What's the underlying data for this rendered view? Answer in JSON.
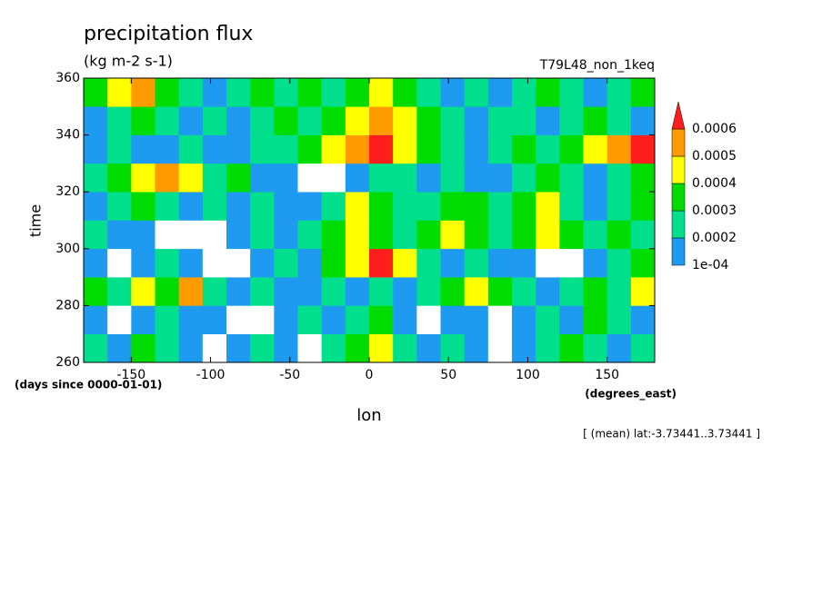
{
  "chart_data": {
    "type": "contourf",
    "title": "precipitation flux",
    "subtitle": "(kg m-2 s-1)",
    "annotation": "T79L48_non_1keq",
    "x_label": "lon",
    "y_label": "time",
    "x_units": "(degrees_east)",
    "y_units": "(days since 0000-01-01)",
    "footnote": "[ (mean) lat:-3.73441..3.73441 ]",
    "xlim": [
      -180,
      180
    ],
    "ylim": [
      260,
      360
    ],
    "xticks": [
      -150,
      -100,
      -50,
      0,
      50,
      100,
      150
    ],
    "yticks": [
      260,
      280,
      300,
      320,
      340,
      360
    ],
    "x_edges": [
      -180,
      -165,
      -150,
      -135,
      -120,
      -105,
      -90,
      -75,
      -60,
      -45,
      -30,
      -15,
      0,
      15,
      30,
      45,
      60,
      75,
      90,
      105,
      120,
      135,
      150,
      165,
      180
    ],
    "y_edges": [
      260,
      270,
      280,
      290,
      300,
      310,
      320,
      330,
      340,
      350,
      360
    ],
    "values": [
      [
        0.00025,
        0.00015,
        0.00035,
        0.00025,
        0.00015,
        0,
        0.00015,
        0.00025,
        0.00015,
        0,
        0.00025,
        0.00035,
        0.00045,
        0.00025,
        0.00015,
        0.00025,
        0.00015,
        0,
        0.00015,
        0.00025,
        0.00035,
        0.00025,
        0.00015,
        0.00025
      ],
      [
        0.00015,
        0,
        0.00015,
        0.00025,
        0.00015,
        0.00015,
        0,
        0,
        0.00015,
        0.00025,
        0.00015,
        0.00025,
        0.00035,
        0.00015,
        0,
        0.00015,
        0.00015,
        0,
        0.00015,
        0.00025,
        0.00015,
        0.00035,
        0.00025,
        0.00015
      ],
      [
        0.00035,
        0.00025,
        0.00045,
        0.00035,
        0.00055,
        0.00025,
        0.00015,
        0.00025,
        0.00015,
        0.00015,
        0.00025,
        0.00015,
        0.00025,
        0.00015,
        0.00025,
        0.00035,
        0.00045,
        0.00035,
        0.00025,
        0.00015,
        0.00025,
        0.00035,
        0.00025,
        0.00045
      ],
      [
        0.00015,
        0,
        0.00015,
        0.00025,
        0.00015,
        0,
        0,
        0.00015,
        0.00025,
        0.00015,
        0.00035,
        0.00045,
        0.00065,
        0.00045,
        0.00025,
        0.00015,
        0.00025,
        0.00015,
        0.00015,
        0,
        0,
        0.00015,
        0.00025,
        0.00035
      ],
      [
        0.00025,
        0.00015,
        0.00015,
        0,
        0,
        0,
        0.00015,
        0.00025,
        0.00015,
        0.00025,
        0.00035,
        0.00045,
        0.00035,
        0.00025,
        0.00035,
        0.00045,
        0.00035,
        0.00025,
        0.00035,
        0.00045,
        0.00035,
        0.00025,
        0.00035,
        0.00025
      ],
      [
        0.00015,
        0.00025,
        0.00035,
        0.00025,
        0.00015,
        0.00025,
        0.00015,
        0.00025,
        0.00015,
        0.00015,
        0.00025,
        0.00045,
        0.00035,
        0.00025,
        0.00025,
        0.00035,
        0.00035,
        0.00025,
        0.00035,
        0.00045,
        0.00025,
        0.00015,
        0.00025,
        0.00035
      ],
      [
        0.00025,
        0.00035,
        0.00045,
        0.00055,
        0.00045,
        0.00025,
        0.00035,
        0.00015,
        0.00015,
        0,
        0,
        0.00015,
        0.00025,
        0.00025,
        0.00015,
        0.00025,
        0.00015,
        0.00015,
        0.00025,
        0.00035,
        0.00025,
        0.00015,
        0.00025,
        0.00035
      ],
      [
        0.00015,
        0.00025,
        0.00015,
        0.00015,
        0.00025,
        0.00015,
        0.00015,
        0.00025,
        0.00025,
        0.00035,
        0.00045,
        0.00055,
        0.00065,
        0.00045,
        0.00035,
        0.00025,
        0.00015,
        0.00025,
        0.00035,
        0.00025,
        0.00035,
        0.00045,
        0.00055,
        0.00065
      ],
      [
        0.00015,
        0.00025,
        0.00035,
        0.00025,
        0.00015,
        0.00025,
        0.00015,
        0.00025,
        0.00035,
        0.00025,
        0.00035,
        0.00045,
        0.00055,
        0.00045,
        0.00035,
        0.00025,
        0.00015,
        0.00025,
        0.00025,
        0.00015,
        0.00025,
        0.00035,
        0.00025,
        0.00015
      ],
      [
        0.00035,
        0.00045,
        0.00055,
        0.00035,
        0.00025,
        0.00015,
        0.00025,
        0.00035,
        0.00025,
        0.00035,
        0.00025,
        0.00035,
        0.00045,
        0.00035,
        0.00025,
        0.00015,
        0.00025,
        0.00015,
        0.00025,
        0.00035,
        0.00025,
        0.00015,
        0.00025,
        0.00035
      ]
    ],
    "levels": [
      {
        "value": 0.0001,
        "label": "1e-04"
      },
      0.0002,
      0.0003,
      0.0004,
      0.0005,
      0.0006
    ],
    "colors": [
      "#1e9bf0",
      "#00e08c",
      "#00dc00",
      "#ffff00",
      "#ff9a00",
      "#ff1e1e"
    ]
  }
}
